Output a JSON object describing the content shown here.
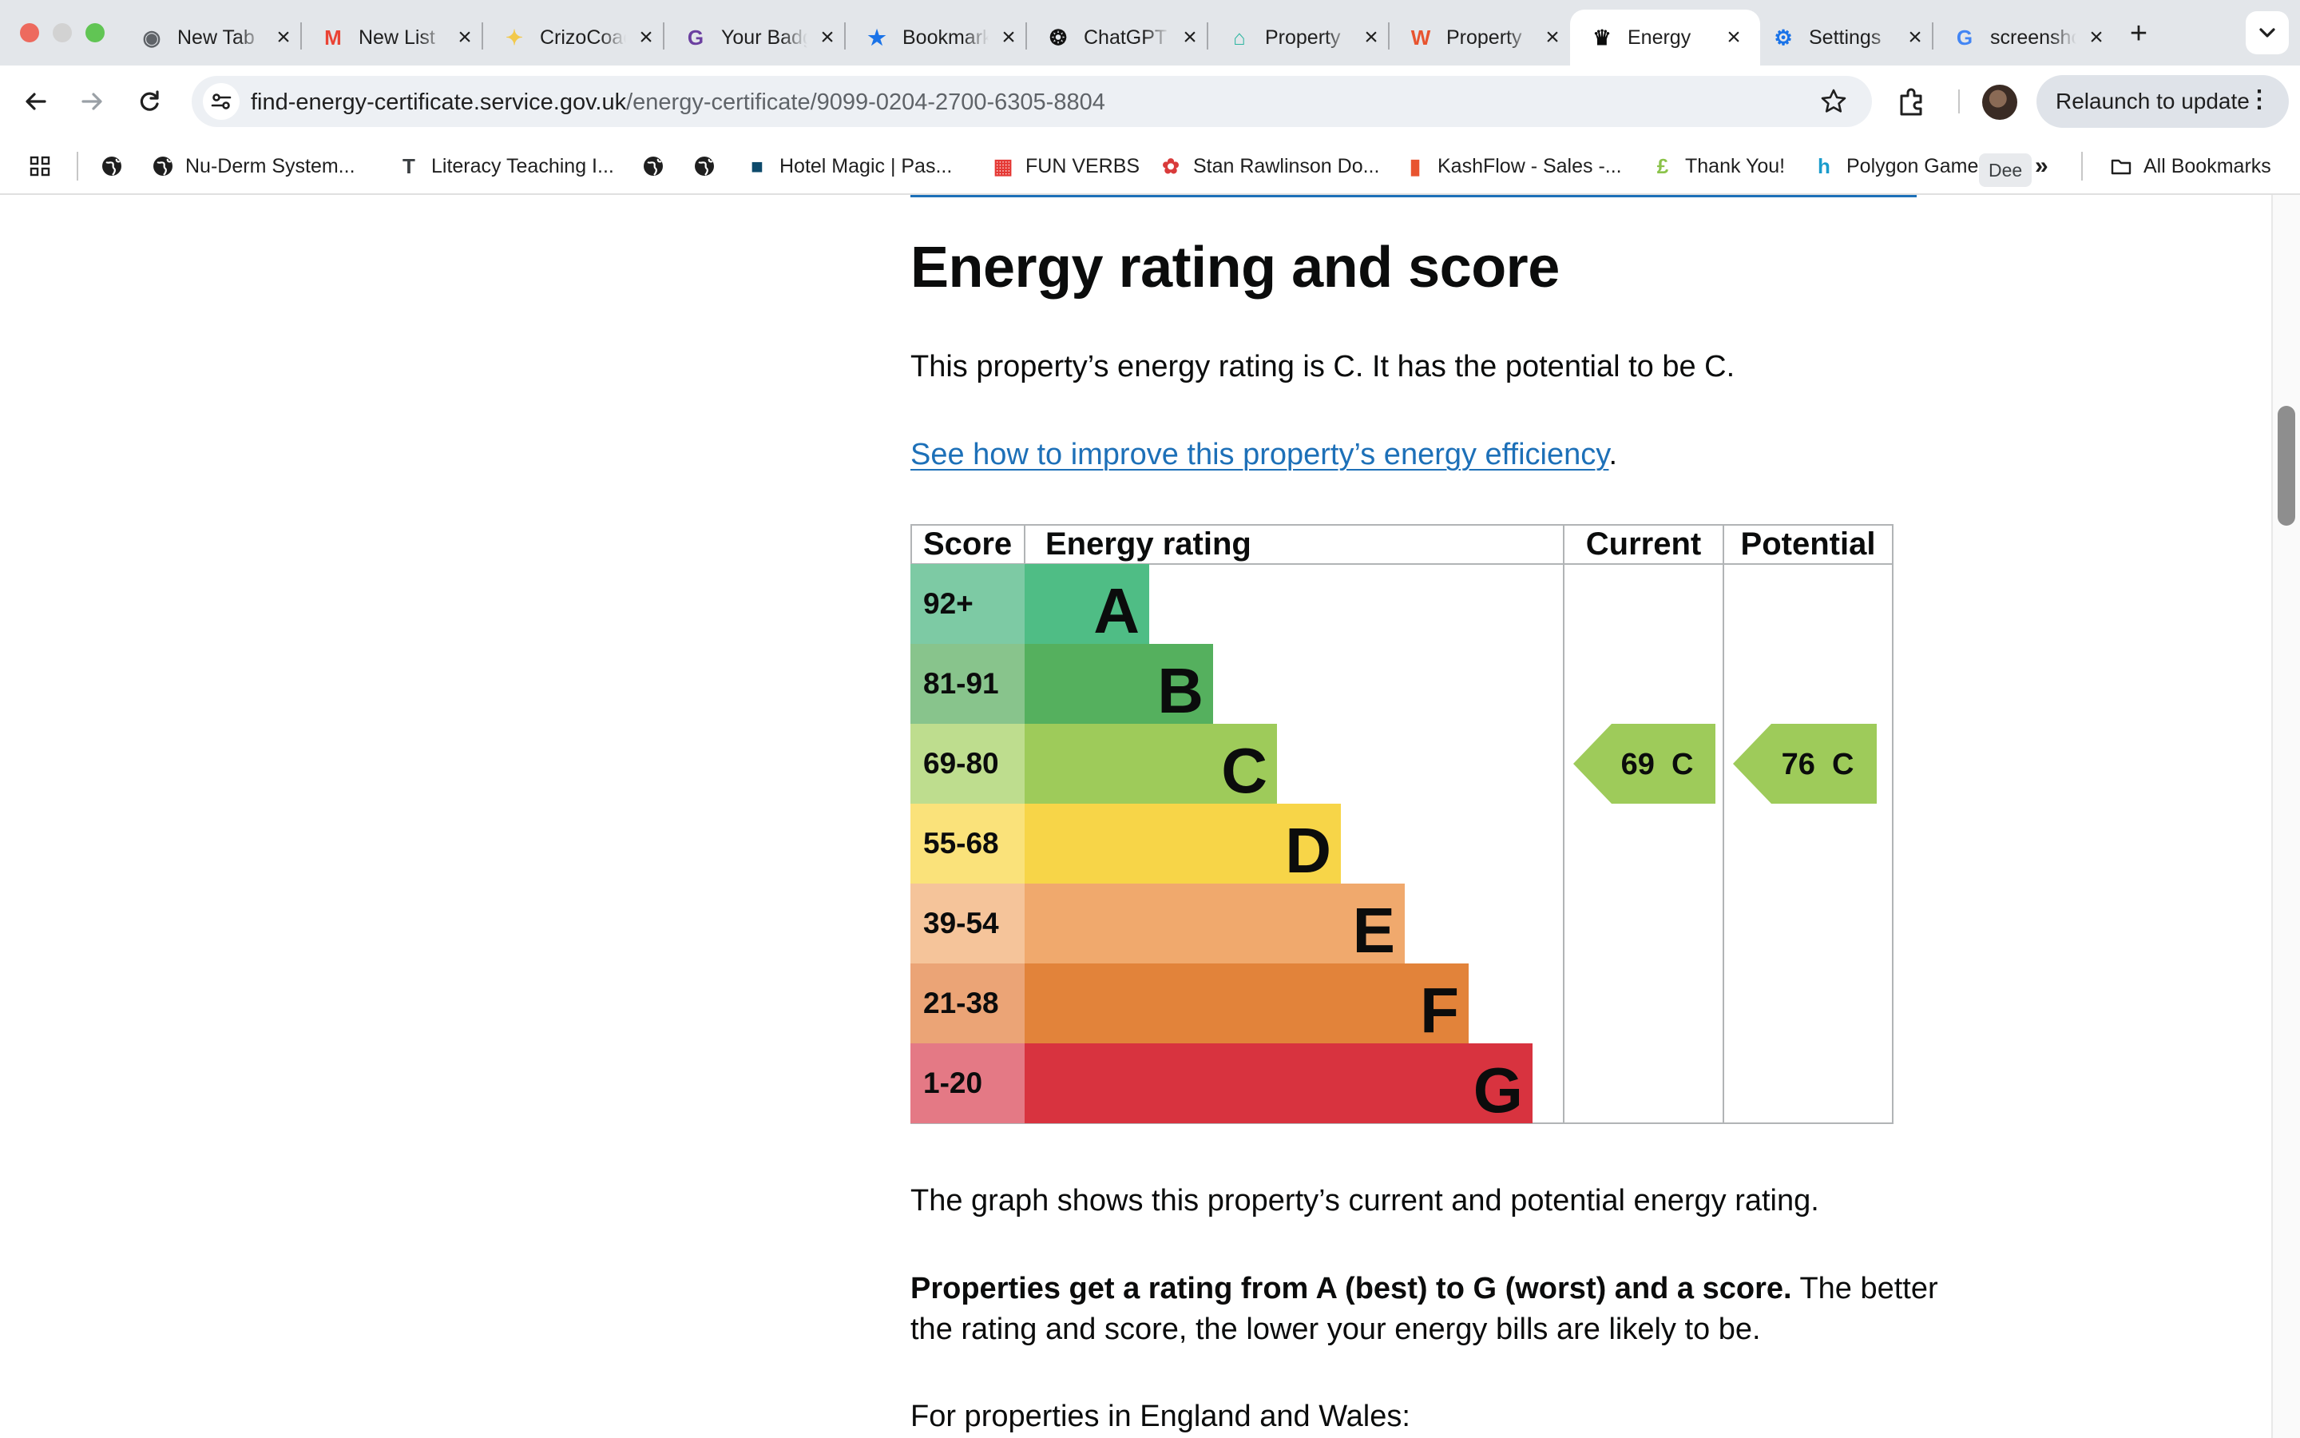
{
  "browser": {
    "tabs": [
      {
        "title": "New Tab",
        "icon": "chrome-icon",
        "color": "#5f6368",
        "glyph": "◉"
      },
      {
        "title": "New List",
        "icon": "gmail-icon",
        "color": "#ea4335",
        "glyph": "M"
      },
      {
        "title": "CrizoCoach",
        "icon": "sparkle-icon",
        "color": "#f2c94c",
        "glyph": "✦"
      },
      {
        "title": "Your Badge",
        "icon": "g-letter-icon",
        "color": "#6b3fa0",
        "glyph": "G"
      },
      {
        "title": "Bookmarks",
        "icon": "star-icon",
        "color": "#1a73e8",
        "glyph": "★"
      },
      {
        "title": "ChatGPT",
        "icon": "chatgpt-icon",
        "color": "#111111",
        "glyph": "❂"
      },
      {
        "title": "Property",
        "icon": "house-icon",
        "color": "#2bb5a0",
        "glyph": "⌂"
      },
      {
        "title": "Property",
        "icon": "w-letter-icon",
        "color": "#e8542f",
        "glyph": "W"
      },
      {
        "title": "Energy",
        "icon": "crown-icon",
        "color": "#0b0c0c",
        "glyph": "♛"
      },
      {
        "title": "Settings",
        "icon": "gear-icon",
        "color": "#1a73e8",
        "glyph": "⚙"
      },
      {
        "title": "screenshot",
        "icon": "google-icon",
        "color": "#4285f4",
        "glyph": "G"
      }
    ],
    "active_tab": 8,
    "url_host": "find-energy-certificate.service.gov.uk",
    "url_path": "/energy-certificate/9099-0204-2700-6305-8804",
    "relaunch_label": "Relaunch to update",
    "tooltip": "Dee",
    "bookmarks": [
      {
        "label": "",
        "icon": "globe-icon"
      },
      {
        "label": "Nu-Derm System...",
        "icon": "globe-icon"
      },
      {
        "label": "Literacy Teaching I...",
        "icon": "tt-icon"
      },
      {
        "label": "",
        "icon": "globe-icon"
      },
      {
        "label": "",
        "icon": "globe-icon"
      },
      {
        "label": "Hotel Magic | Pas...",
        "icon": "hotel-icon"
      },
      {
        "label": "FUN VERBS",
        "icon": "color-grid-icon"
      },
      {
        "label": "Stan Rawlinson Do...",
        "icon": "paw-icon"
      },
      {
        "label": "KashFlow - Sales -...",
        "icon": "bar-chart-icon"
      },
      {
        "label": "Thank You!",
        "icon": "pound-icon"
      },
      {
        "label": "Polygon Games",
        "icon": "polygon-icon"
      }
    ],
    "all_bookmarks_label": "All Bookmarks"
  },
  "page": {
    "heading": "Energy rating and score",
    "rating_sentence": "This property’s energy rating is C. It has the potential to be C.",
    "improve_link": "See how to improve this property’s energy efficiency",
    "improve_suffix": ".",
    "graph_caption": "The graph shows this property’s current and potential energy rating.",
    "rating_explainer_bold": "Properties get a rating from A (best) to G (worst) and a score.",
    "rating_explainer_rest": " The better",
    "rating_explainer_line2": "the rating and score, the lower your energy bills are likely to be.",
    "england_wales": "For properties in England and Wales:"
  },
  "chart_data": {
    "type": "table",
    "columns": [
      "Score",
      "Energy rating",
      "Current",
      "Potential"
    ],
    "bands": [
      {
        "score": "92+",
        "letter": "A",
        "color": "#4fbd85",
        "score_bg": "#7dcaa4"
      },
      {
        "score": "81-91",
        "letter": "B",
        "color": "#55b05e",
        "score_bg": "#88c48c"
      },
      {
        "score": "69-80",
        "letter": "C",
        "color": "#9ecb5a",
        "score_bg": "#bedd8e"
      },
      {
        "score": "55-68",
        "letter": "D",
        "color": "#f7d548",
        "score_bg": "#fae27a"
      },
      {
        "score": "39-54",
        "letter": "E",
        "color": "#f0a96d",
        "score_bg": "#f5c49a"
      },
      {
        "score": "21-38",
        "letter": "F",
        "color": "#e2833a",
        "score_bg": "#eba476"
      },
      {
        "score": "1-20",
        "letter": "G",
        "color": "#d8333f",
        "score_bg": "#e47985"
      }
    ],
    "current": {
      "score": 69,
      "band": "C",
      "label": "69  C"
    },
    "potential": {
      "score": 76,
      "band": "C",
      "label": "76  C"
    }
  }
}
